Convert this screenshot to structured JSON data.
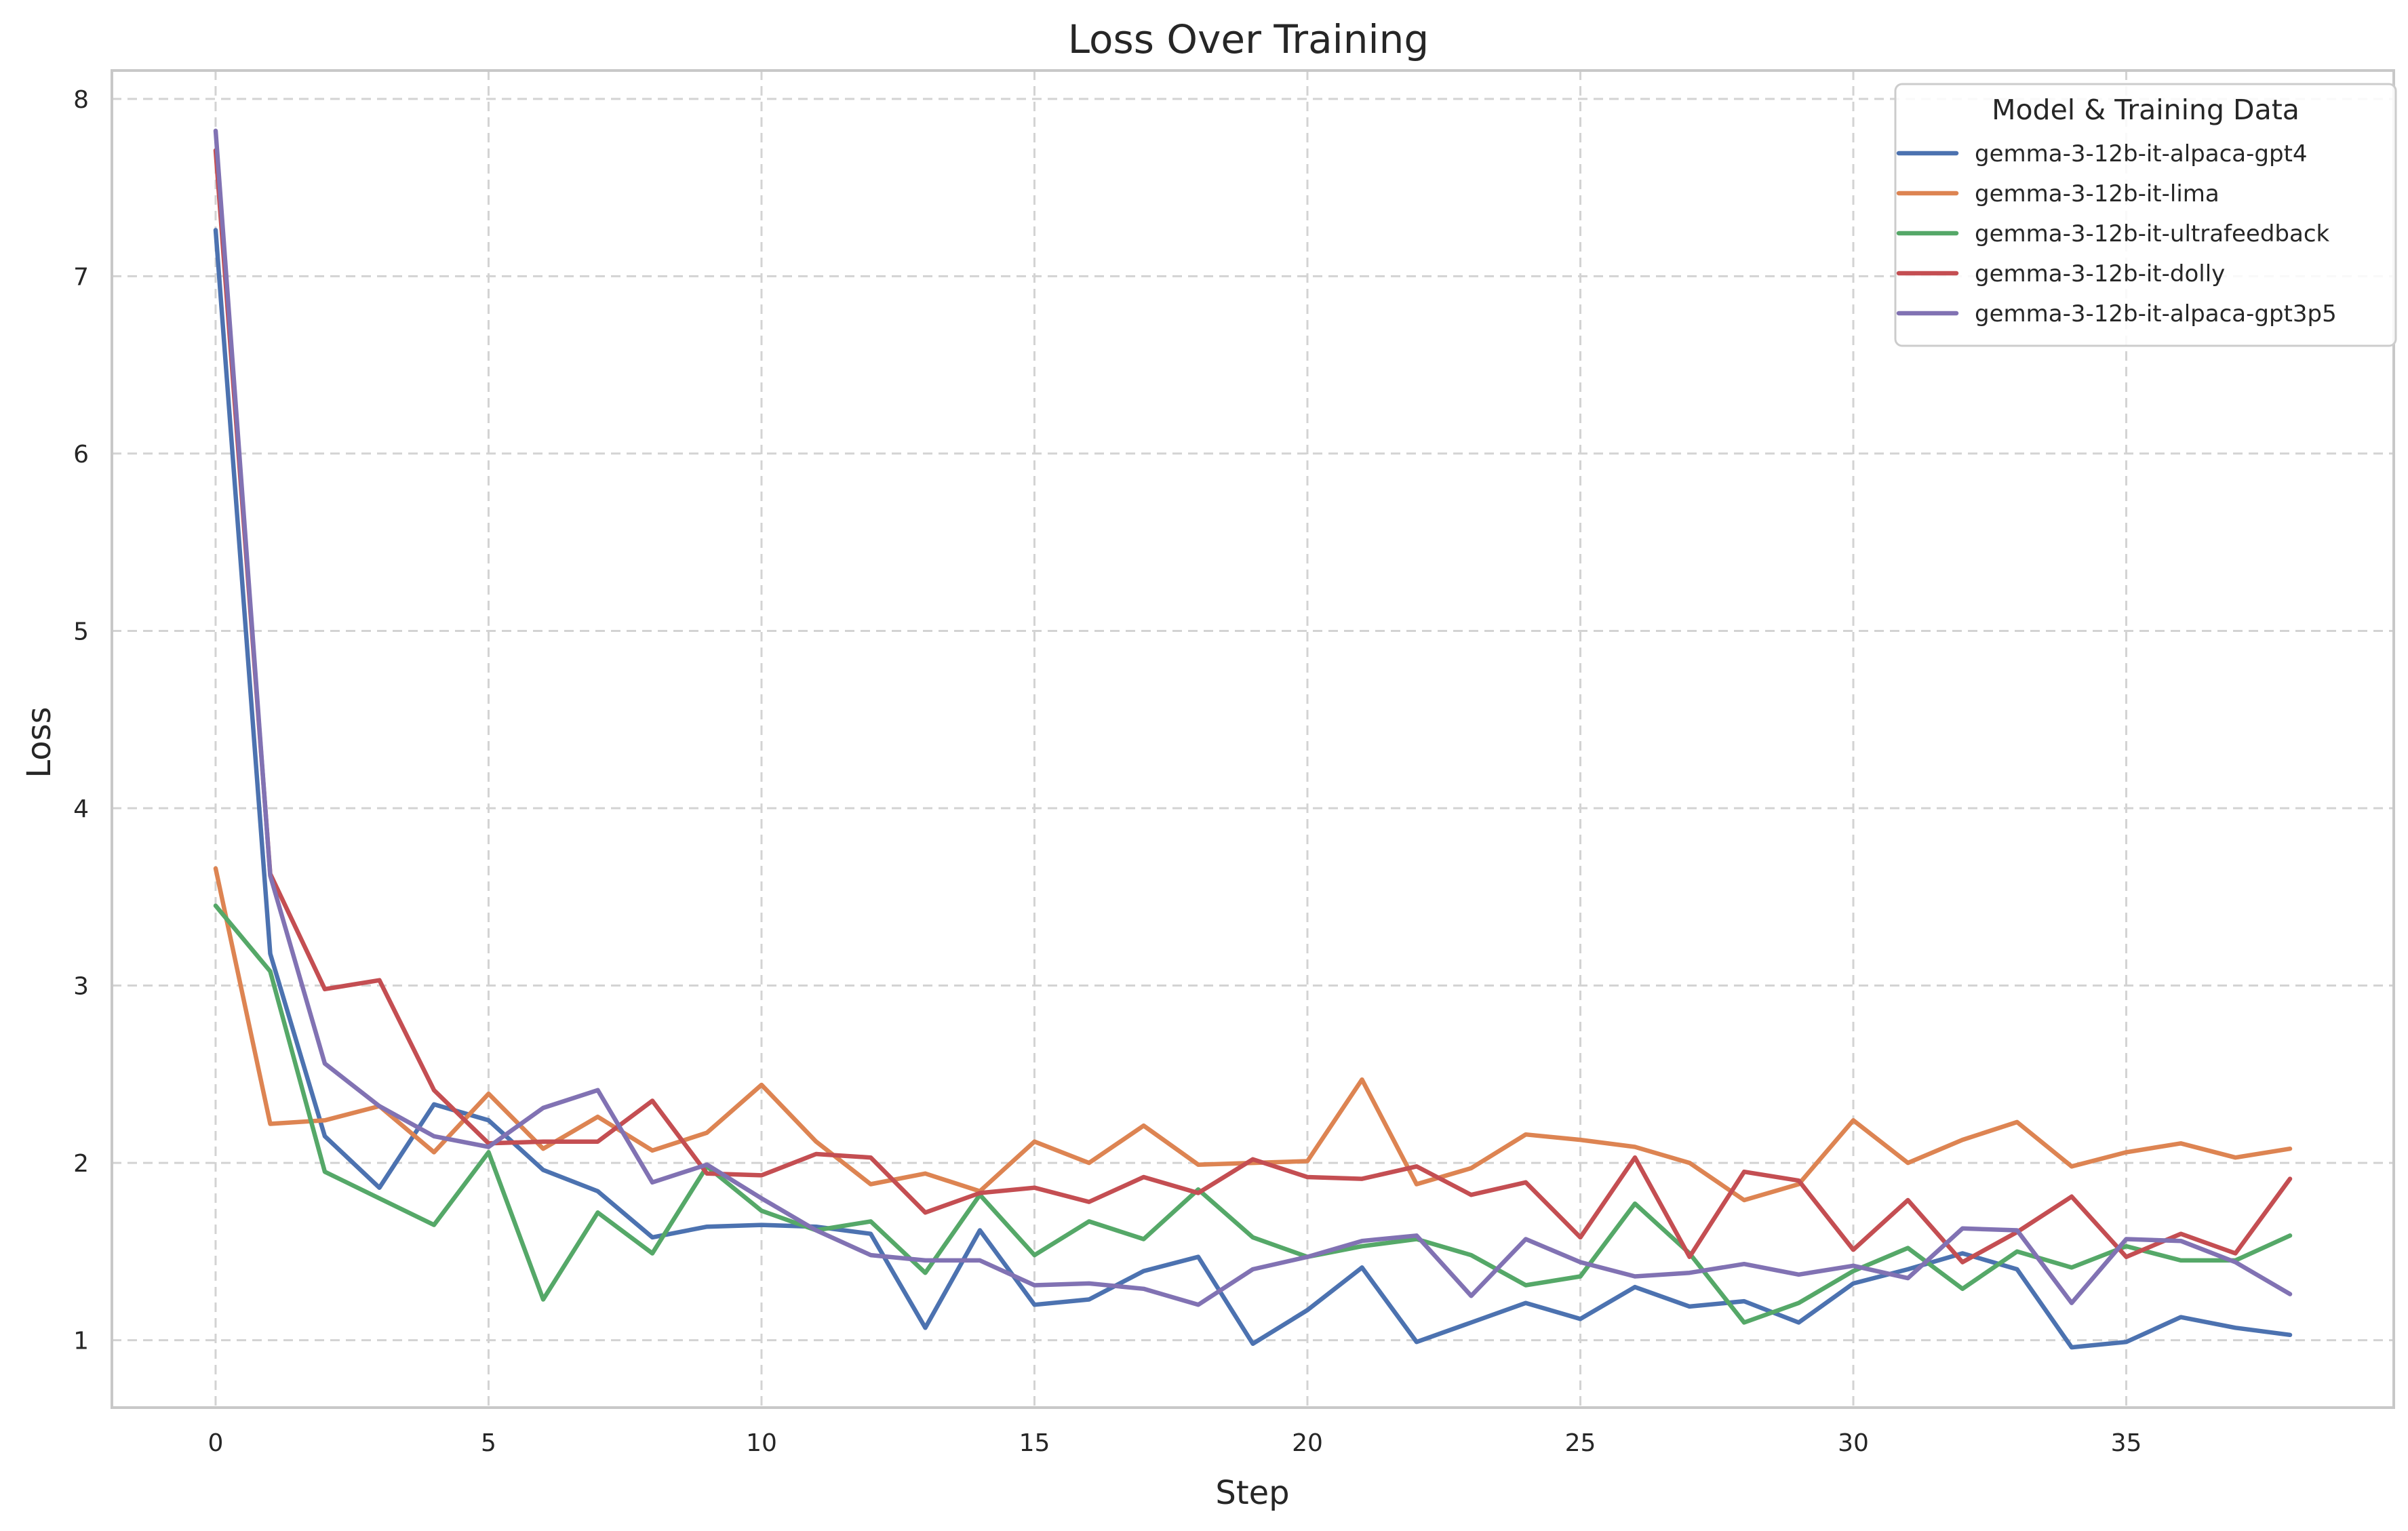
{
  "chart_data": {
    "type": "line",
    "title": "Loss Over Training",
    "xlabel": "Step",
    "ylabel": "Loss",
    "xlim": [
      -1.9,
      39.9
    ],
    "ylim": [
      0.62,
      8.16
    ],
    "xticks": [
      0,
      5,
      10,
      15,
      20,
      25,
      30,
      35
    ],
    "yticks": [
      1,
      2,
      3,
      4,
      5,
      6,
      7,
      8
    ],
    "grid": true,
    "legend": {
      "title": "Model & Training Data",
      "position": "top-right"
    },
    "x": [
      0,
      1,
      2,
      3,
      4,
      5,
      6,
      7,
      8,
      9,
      10,
      11,
      12,
      13,
      14,
      15,
      16,
      17,
      18,
      19,
      20,
      21,
      22,
      23,
      24,
      25,
      26,
      27,
      28,
      29,
      30,
      31,
      32,
      33,
      34,
      35,
      36,
      37,
      38
    ],
    "series": [
      {
        "name": "gemma-3-12b-it-alpaca-gpt4",
        "color": "#4c72b0",
        "values": [
          7.26,
          3.18,
          2.15,
          1.86,
          2.33,
          2.24,
          1.96,
          1.84,
          1.58,
          1.64,
          1.65,
          1.64,
          1.6,
          1.07,
          1.62,
          1.2,
          1.23,
          1.39,
          1.47,
          0.98,
          1.17,
          1.41,
          0.99,
          1.1,
          1.21,
          1.12,
          1.3,
          1.19,
          1.22,
          1.1,
          1.32,
          1.4,
          1.49,
          1.4,
          0.96,
          0.99,
          1.13,
          1.07,
          1.03
        ]
      },
      {
        "name": "gemma-3-12b-it-lima",
        "color": "#dd8452",
        "values": [
          3.66,
          2.22,
          2.24,
          2.32,
          2.06,
          2.39,
          2.08,
          2.26,
          2.07,
          2.17,
          2.44,
          2.12,
          1.88,
          1.94,
          1.84,
          2.12,
          2.0,
          2.21,
          1.99,
          2.0,
          2.01,
          2.47,
          1.88,
          1.97,
          2.16,
          2.13,
          2.09,
          2.0,
          1.79,
          1.88,
          2.24,
          2.0,
          2.13,
          2.23,
          1.98,
          2.06,
          2.11,
          2.03,
          2.08
        ]
      },
      {
        "name": "gemma-3-12b-it-ultrafeedback",
        "color": "#55a868",
        "values": [
          3.45,
          3.08,
          1.95,
          1.8,
          1.65,
          2.06,
          1.23,
          1.72,
          1.49,
          1.98,
          1.73,
          1.62,
          1.67,
          1.38,
          1.82,
          1.48,
          1.67,
          1.57,
          1.85,
          1.58,
          1.47,
          1.53,
          1.57,
          1.48,
          1.31,
          1.36,
          1.77,
          1.49,
          1.1,
          1.21,
          1.39,
          1.52,
          1.29,
          1.5,
          1.41,
          1.53,
          1.45,
          1.45,
          1.59
        ]
      },
      {
        "name": "gemma-3-12b-it-dolly",
        "color": "#c44e52",
        "values": [
          7.71,
          3.63,
          2.98,
          3.03,
          2.41,
          2.11,
          2.12,
          2.12,
          2.35,
          1.94,
          1.93,
          2.05,
          2.03,
          1.72,
          1.83,
          1.86,
          1.78,
          1.92,
          1.83,
          2.02,
          1.92,
          1.91,
          1.98,
          1.82,
          1.89,
          1.58,
          2.03,
          1.47,
          1.95,
          1.9,
          1.51,
          1.79,
          1.44,
          1.61,
          1.81,
          1.47,
          1.6,
          1.49,
          1.91
        ]
      },
      {
        "name": "gemma-3-12b-it-alpaca-gpt3p5",
        "color": "#8172b3",
        "values": [
          7.82,
          3.62,
          2.56,
          2.32,
          2.15,
          2.09,
          2.31,
          2.41,
          1.89,
          1.99,
          1.8,
          1.62,
          1.48,
          1.45,
          1.45,
          1.31,
          1.32,
          1.29,
          1.2,
          1.4,
          1.47,
          1.56,
          1.59,
          1.25,
          1.57,
          1.44,
          1.36,
          1.38,
          1.43,
          1.37,
          1.42,
          1.35,
          1.63,
          1.62,
          1.21,
          1.57,
          1.56,
          1.44,
          1.26
        ]
      }
    ]
  }
}
